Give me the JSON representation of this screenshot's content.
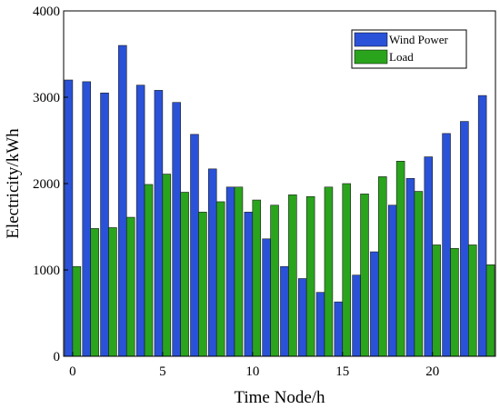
{
  "chart_data": {
    "type": "bar",
    "title": "",
    "xlabel": "Time Node/h",
    "ylabel": "Electricity/kWh",
    "x": [
      0,
      1,
      2,
      3,
      4,
      5,
      6,
      7,
      8,
      9,
      10,
      11,
      12,
      13,
      14,
      15,
      16,
      17,
      18,
      19,
      20,
      21,
      22,
      23
    ],
    "xticks": [
      0,
      5,
      10,
      15,
      20
    ],
    "yticks": [
      0,
      1000,
      2000,
      3000,
      4000
    ],
    "xlim": [
      -0.5,
      23.5
    ],
    "ylim": [
      0,
      4000
    ],
    "grid": false,
    "legend_position": "top-right",
    "series": [
      {
        "name": "Wind Power",
        "color": "#2a52d8",
        "values": [
          3200,
          3180,
          3050,
          3600,
          3140,
          3080,
          2940,
          2570,
          2170,
          1960,
          1670,
          1360,
          1040,
          900,
          740,
          630,
          940,
          1210,
          1750,
          2060,
          2310,
          2580,
          2720,
          3020
        ]
      },
      {
        "name": "Load",
        "color": "#2aa41c",
        "values": [
          1040,
          1480,
          1490,
          1610,
          1990,
          2110,
          1900,
          1670,
          1790,
          1960,
          1810,
          1750,
          1870,
          1850,
          1960,
          2000,
          1880,
          2080,
          2260,
          1910,
          1290,
          1250,
          1290,
          1060
        ]
      }
    ]
  }
}
